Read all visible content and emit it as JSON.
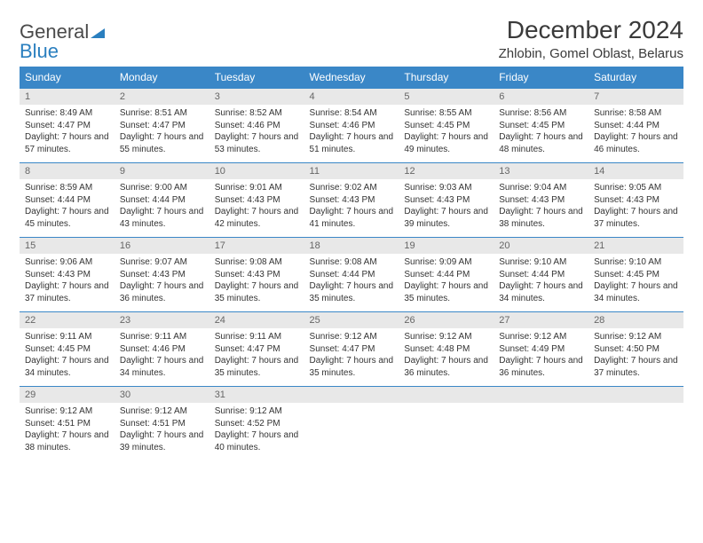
{
  "brand": {
    "part1": "General",
    "part2": "Blue"
  },
  "title": "December 2024",
  "location": "Zhlobin, Gomel Oblast, Belarus",
  "colors": {
    "header_bg": "#3a87c7",
    "header_text": "#ffffff",
    "daynum_bg": "#e8e8e8",
    "daynum_text": "#666666",
    "body_text": "#333333",
    "row_border": "#3a87c7",
    "brand_gray": "#4a4a4a",
    "brand_blue": "#2a7fbf"
  },
  "typography": {
    "title_fontsize": 28,
    "location_fontsize": 15,
    "dayhead_fontsize": 12,
    "daynum_fontsize": 11,
    "body_fontsize": 10
  },
  "day_names": [
    "Sunday",
    "Monday",
    "Tuesday",
    "Wednesday",
    "Thursday",
    "Friday",
    "Saturday"
  ],
  "weeks": [
    [
      {
        "num": "1",
        "sunrise": "8:49 AM",
        "sunset": "4:47 PM",
        "daylight": "7 hours and 57 minutes."
      },
      {
        "num": "2",
        "sunrise": "8:51 AM",
        "sunset": "4:47 PM",
        "daylight": "7 hours and 55 minutes."
      },
      {
        "num": "3",
        "sunrise": "8:52 AM",
        "sunset": "4:46 PM",
        "daylight": "7 hours and 53 minutes."
      },
      {
        "num": "4",
        "sunrise": "8:54 AM",
        "sunset": "4:46 PM",
        "daylight": "7 hours and 51 minutes."
      },
      {
        "num": "5",
        "sunrise": "8:55 AM",
        "sunset": "4:45 PM",
        "daylight": "7 hours and 49 minutes."
      },
      {
        "num": "6",
        "sunrise": "8:56 AM",
        "sunset": "4:45 PM",
        "daylight": "7 hours and 48 minutes."
      },
      {
        "num": "7",
        "sunrise": "8:58 AM",
        "sunset": "4:44 PM",
        "daylight": "7 hours and 46 minutes."
      }
    ],
    [
      {
        "num": "8",
        "sunrise": "8:59 AM",
        "sunset": "4:44 PM",
        "daylight": "7 hours and 45 minutes."
      },
      {
        "num": "9",
        "sunrise": "9:00 AM",
        "sunset": "4:44 PM",
        "daylight": "7 hours and 43 minutes."
      },
      {
        "num": "10",
        "sunrise": "9:01 AM",
        "sunset": "4:43 PM",
        "daylight": "7 hours and 42 minutes."
      },
      {
        "num": "11",
        "sunrise": "9:02 AM",
        "sunset": "4:43 PM",
        "daylight": "7 hours and 41 minutes."
      },
      {
        "num": "12",
        "sunrise": "9:03 AM",
        "sunset": "4:43 PM",
        "daylight": "7 hours and 39 minutes."
      },
      {
        "num": "13",
        "sunrise": "9:04 AM",
        "sunset": "4:43 PM",
        "daylight": "7 hours and 38 minutes."
      },
      {
        "num": "14",
        "sunrise": "9:05 AM",
        "sunset": "4:43 PM",
        "daylight": "7 hours and 37 minutes."
      }
    ],
    [
      {
        "num": "15",
        "sunrise": "9:06 AM",
        "sunset": "4:43 PM",
        "daylight": "7 hours and 37 minutes."
      },
      {
        "num": "16",
        "sunrise": "9:07 AM",
        "sunset": "4:43 PM",
        "daylight": "7 hours and 36 minutes."
      },
      {
        "num": "17",
        "sunrise": "9:08 AM",
        "sunset": "4:43 PM",
        "daylight": "7 hours and 35 minutes."
      },
      {
        "num": "18",
        "sunrise": "9:08 AM",
        "sunset": "4:44 PM",
        "daylight": "7 hours and 35 minutes."
      },
      {
        "num": "19",
        "sunrise": "9:09 AM",
        "sunset": "4:44 PM",
        "daylight": "7 hours and 35 minutes."
      },
      {
        "num": "20",
        "sunrise": "9:10 AM",
        "sunset": "4:44 PM",
        "daylight": "7 hours and 34 minutes."
      },
      {
        "num": "21",
        "sunrise": "9:10 AM",
        "sunset": "4:45 PM",
        "daylight": "7 hours and 34 minutes."
      }
    ],
    [
      {
        "num": "22",
        "sunrise": "9:11 AM",
        "sunset": "4:45 PM",
        "daylight": "7 hours and 34 minutes."
      },
      {
        "num": "23",
        "sunrise": "9:11 AM",
        "sunset": "4:46 PM",
        "daylight": "7 hours and 34 minutes."
      },
      {
        "num": "24",
        "sunrise": "9:11 AM",
        "sunset": "4:47 PM",
        "daylight": "7 hours and 35 minutes."
      },
      {
        "num": "25",
        "sunrise": "9:12 AM",
        "sunset": "4:47 PM",
        "daylight": "7 hours and 35 minutes."
      },
      {
        "num": "26",
        "sunrise": "9:12 AM",
        "sunset": "4:48 PM",
        "daylight": "7 hours and 36 minutes."
      },
      {
        "num": "27",
        "sunrise": "9:12 AM",
        "sunset": "4:49 PM",
        "daylight": "7 hours and 36 minutes."
      },
      {
        "num": "28",
        "sunrise": "9:12 AM",
        "sunset": "4:50 PM",
        "daylight": "7 hours and 37 minutes."
      }
    ],
    [
      {
        "num": "29",
        "sunrise": "9:12 AM",
        "sunset": "4:51 PM",
        "daylight": "7 hours and 38 minutes."
      },
      {
        "num": "30",
        "sunrise": "9:12 AM",
        "sunset": "4:51 PM",
        "daylight": "7 hours and 39 minutes."
      },
      {
        "num": "31",
        "sunrise": "9:12 AM",
        "sunset": "4:52 PM",
        "daylight": "7 hours and 40 minutes."
      },
      null,
      null,
      null,
      null
    ]
  ],
  "labels": {
    "sunrise": "Sunrise: ",
    "sunset": "Sunset: ",
    "daylight": "Daylight: "
  }
}
